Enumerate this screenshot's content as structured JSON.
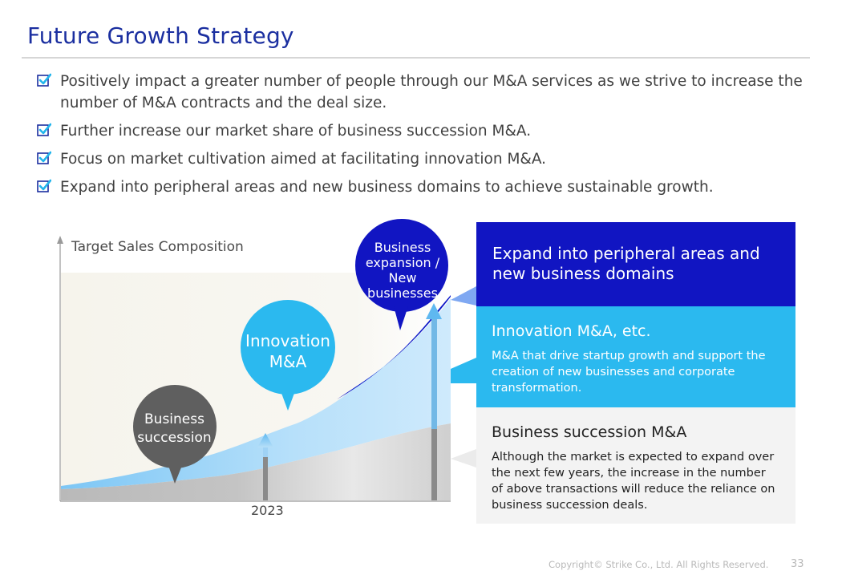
{
  "title": "Future Growth Strategy",
  "bullets": [
    "Positively impact a greater number of people through our M&A services as we strive to increase the number of M&A contracts and the deal size.",
    "Further increase our market share of business succession M&A.",
    "Focus on market cultivation aimed at facilitating innovation M&A.",
    "Expand into peripheral areas and new business domains to achieve sustainable growth."
  ],
  "chart": {
    "label": "Target Sales Composition",
    "year": "2023",
    "bubbles": {
      "succession": "Business succession",
      "innovation": "Innovation M&A",
      "expansion": "Business expansion / New businesses"
    }
  },
  "panels": {
    "expansion": {
      "heading": "Expand into peripheral areas and new business domains"
    },
    "innovation": {
      "heading": "Innovation M&A, etc.",
      "desc": "M&A that drive startup growth and support the creation of new businesses and corporate transformation."
    },
    "succession": {
      "heading": "Business succession M&A",
      "desc": "Although the market is expected to expand over the next few years, the increase in the number of above transactions will reduce the reliance on business succession deals."
    }
  },
  "footer": {
    "copyright": "Copyright© Strike Co., Ltd. All Rights Reserved.",
    "page": "33"
  },
  "colors": {
    "title": "#1b2fa0",
    "navy": "#1115c2",
    "cyan": "#2bb9ef",
    "lightblue": "#aad8f6",
    "gray_bubble": "#5f5f5f",
    "panel_gray": "#f3f3f3"
  },
  "icons": {
    "bullet": "checkbox-check-icon"
  }
}
